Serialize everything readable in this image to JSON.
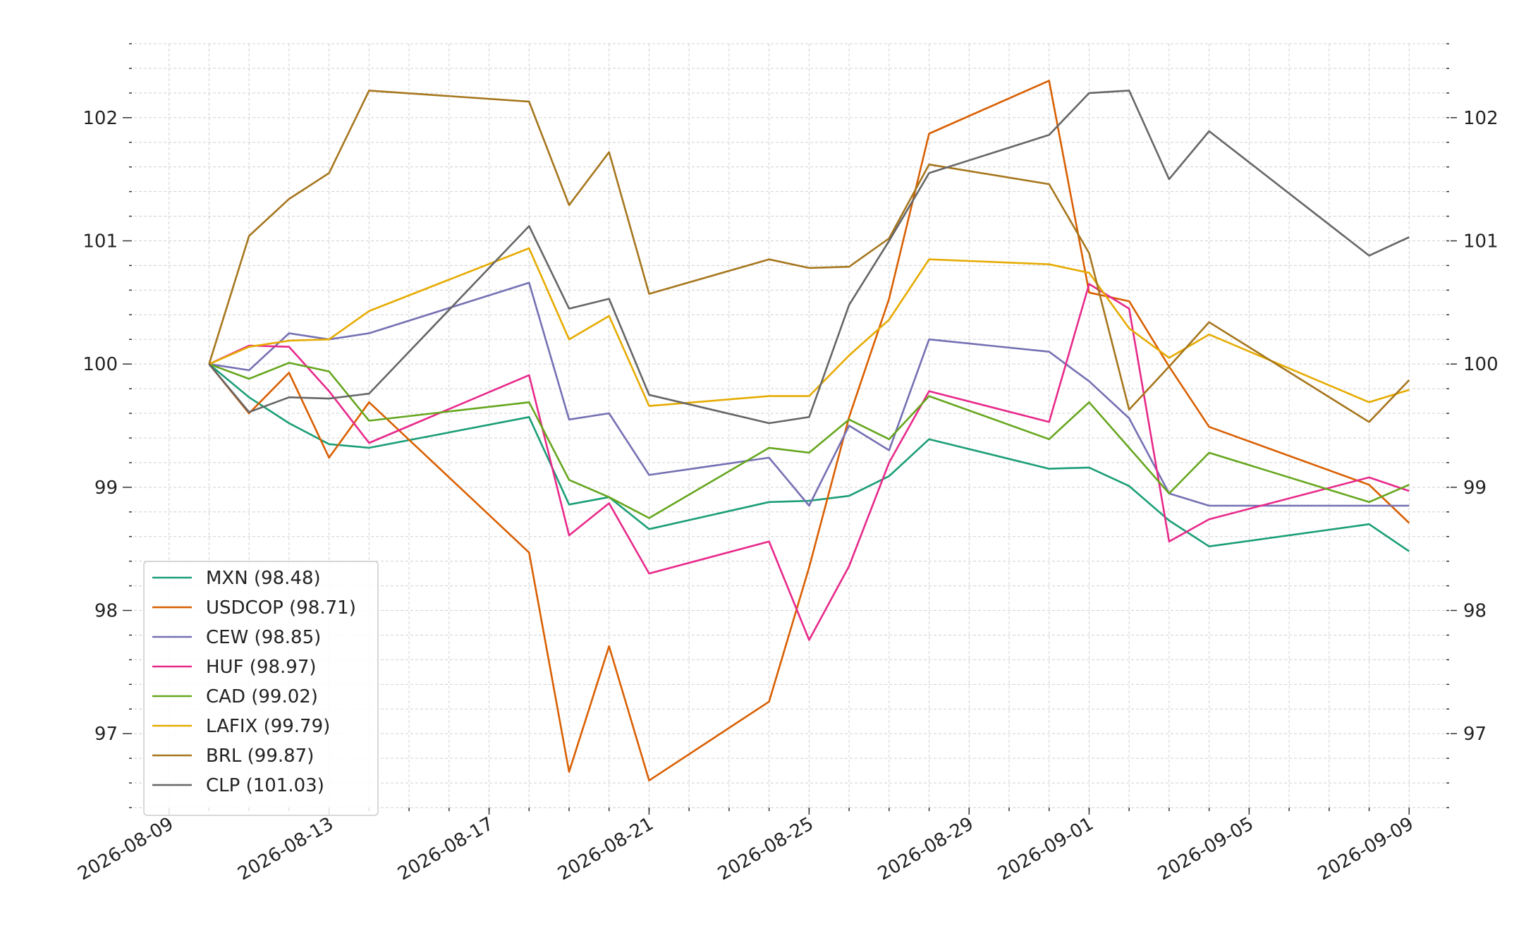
{
  "chart_data": {
    "type": "line",
    "title": "",
    "xlabel": "",
    "ylabel": "",
    "x": [
      "2026-08-10",
      "2026-08-11",
      "2026-08-12",
      "2026-08-13",
      "2026-08-14",
      "2026-08-18",
      "2026-08-19",
      "2026-08-20",
      "2026-08-21",
      "2026-08-24",
      "2026-08-25",
      "2026-08-26",
      "2026-08-27",
      "2026-08-28",
      "2026-08-31",
      "2026-09-01",
      "2026-09-02",
      "2026-09-03",
      "2026-09-04",
      "2026-09-08",
      "2026-09-09"
    ],
    "x_ticks": [
      "2026-08-09",
      "2026-08-13",
      "2026-08-17",
      "2026-08-21",
      "2026-08-25",
      "2026-08-29",
      "2026-09-01",
      "2026-09-05",
      "2026-09-09"
    ],
    "xlim": [
      "2026-08-08",
      "2026-09-10"
    ],
    "y_ticks": [
      97,
      98,
      99,
      100,
      101,
      102
    ],
    "ylim": [
      96.4,
      102.6
    ],
    "grid": true,
    "legend_position": "lower-left",
    "secondary_y_axis": true,
    "series": [
      {
        "name": "MXN (98.48)",
        "color": "#1b9e77",
        "values": [
          100,
          99.73,
          99.52,
          99.35,
          99.32,
          99.57,
          98.86,
          98.92,
          98.66,
          98.88,
          98.89,
          98.93,
          99.09,
          99.39,
          99.15,
          99.16,
          99.01,
          98.73,
          98.52,
          98.7,
          98.48
        ]
      },
      {
        "name": "USDCOP (98.71)",
        "color": "#d95f02",
        "values": [
          100,
          99.6,
          99.93,
          99.24,
          99.69,
          98.47,
          96.69,
          97.71,
          96.62,
          97.26,
          98.35,
          99.57,
          100.53,
          101.87,
          102.3,
          100.58,
          100.51,
          99.98,
          99.49,
          99.02,
          98.71
        ]
      },
      {
        "name": "CEW (98.85)",
        "color": "#7570b3",
        "values": [
          100,
          99.95,
          100.25,
          100.2,
          100.25,
          100.66,
          99.55,
          99.6,
          99.1,
          99.24,
          98.85,
          99.5,
          99.3,
          100.2,
          100.1,
          99.86,
          99.56,
          98.95,
          98.85,
          98.85,
          98.85
        ]
      },
      {
        "name": "HUF (98.97)",
        "color": "#e7298a",
        "values": [
          100,
          100.15,
          100.14,
          99.78,
          99.36,
          99.91,
          98.61,
          98.87,
          98.3,
          98.56,
          97.76,
          98.36,
          99.2,
          99.78,
          99.53,
          100.65,
          100.45,
          98.56,
          98.74,
          99.08,
          98.97
        ]
      },
      {
        "name": "CAD (99.02)",
        "color": "#66a61e",
        "values": [
          100,
          99.88,
          100.01,
          99.94,
          99.54,
          99.69,
          99.06,
          98.92,
          98.75,
          99.32,
          99.28,
          99.55,
          99.39,
          99.74,
          99.39,
          99.69,
          99.32,
          98.95,
          99.28,
          98.88,
          99.02
        ]
      },
      {
        "name": "LAFIX (99.79)",
        "color": "#e6ab02",
        "values": [
          100,
          100.14,
          100.19,
          100.2,
          100.43,
          100.94,
          100.2,
          100.39,
          99.66,
          99.74,
          99.74,
          100.07,
          100.36,
          100.85,
          100.81,
          100.74,
          100.29,
          100.05,
          100.24,
          99.69,
          99.79
        ]
      },
      {
        "name": "BRL (99.87)",
        "color": "#a6761d",
        "values": [
          100,
          101.04,
          101.34,
          101.55,
          102.22,
          102.13,
          101.29,
          101.72,
          100.57,
          100.85,
          100.78,
          100.79,
          101.02,
          101.62,
          101.46,
          100.9,
          99.63,
          99.98,
          100.34,
          99.53,
          99.87
        ]
      },
      {
        "name": "CLP (101.03)",
        "color": "#666666",
        "values": [
          100,
          99.61,
          99.73,
          99.72,
          99.76,
          101.12,
          100.45,
          100.53,
          99.75,
          99.52,
          99.57,
          100.48,
          101.0,
          101.55,
          101.86,
          102.2,
          102.22,
          101.5,
          101.89,
          100.88,
          101.03
        ]
      }
    ]
  }
}
